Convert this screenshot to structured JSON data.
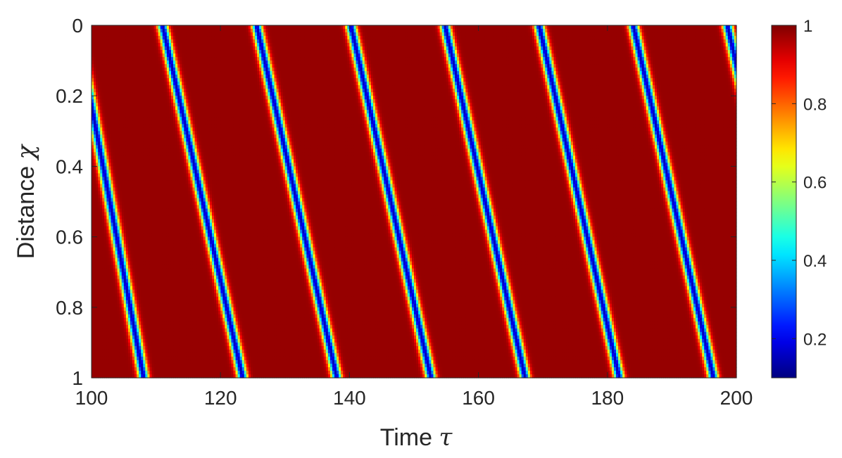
{
  "chart_data": {
    "type": "heatmap",
    "title": "",
    "xlabel": "Time",
    "xlabel_symbol": "τ",
    "ylabel": "Distance",
    "ylabel_symbol": "χ",
    "xlim": [
      100,
      200
    ],
    "ylim": [
      0,
      1
    ],
    "y_reversed": true,
    "xticks": [
      "100",
      "120",
      "140",
      "160",
      "180",
      "200"
    ],
    "yticks": [
      "0",
      "0.2",
      "0.4",
      "0.6",
      "0.8",
      "1"
    ],
    "colormap": "jet",
    "colorbar": {
      "range": [
        0.1,
        1
      ],
      "ticks": [
        "0.2",
        "0.4",
        "0.6",
        "0.8",
        "1"
      ]
    },
    "background_value": 0.98,
    "min_value": 0.15,
    "bands": [
      {
        "start_time": 97.6,
        "speed": 0.0954
      },
      {
        "start_time": 111.0,
        "speed": 0.0804
      },
      {
        "start_time": 125.6,
        "speed": 0.0804
      },
      {
        "start_time": 140.2,
        "speed": 0.0804
      },
      {
        "start_time": 154.8,
        "speed": 0.0804
      },
      {
        "start_time": 169.4,
        "speed": 0.0804
      },
      {
        "start_time": 184.0,
        "speed": 0.0804
      },
      {
        "start_time": 198.6,
        "speed": 0.0804
      }
    ],
    "band_width_time": 0.55
  }
}
